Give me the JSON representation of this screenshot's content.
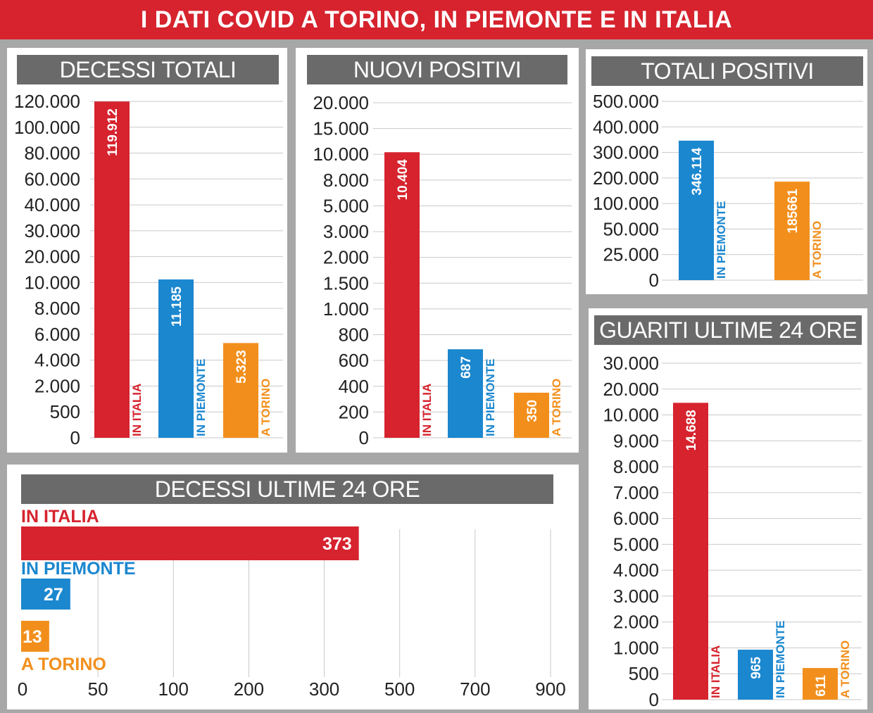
{
  "header": {
    "title": "I DATI COVID A TORINO, IN PIEMONTE E IN ITALIA"
  },
  "colors": {
    "italia": "#d6232e",
    "piemonte": "#1b87cf",
    "torino": "#f28f1c",
    "title_bg": "#6a6a6a",
    "banner": "#d6232e"
  },
  "chart_data": [
    {
      "id": "decessi_totali",
      "type": "bar",
      "title": "DECESSI TOTALI",
      "ticks": [
        "0",
        "500",
        "2.000",
        "4.000",
        "6.000",
        "8.000",
        "10.000",
        "20.000",
        "30.000",
        "40.000",
        "60.000",
        "80.000",
        "100.000",
        "120.000"
      ],
      "categories": [
        "IN ITALIA",
        "IN PIEMONTE",
        "A TORINO"
      ],
      "values": [
        119912,
        11185,
        5323
      ],
      "value_labels": [
        "119.912",
        "11.185",
        "5.323"
      ]
    },
    {
      "id": "nuovi_positivi",
      "type": "bar",
      "title": "NUOVI POSITIVI",
      "ticks": [
        "0",
        "200",
        "400",
        "600",
        "800",
        "1.000",
        "1.500",
        "2.000",
        "3.000",
        "5.000",
        "8.000",
        "10.000",
        "15.000",
        "20.000"
      ],
      "categories": [
        "IN ITALIA",
        "IN PIEMONTE",
        "A TORINO"
      ],
      "values": [
        10404,
        687,
        350
      ],
      "value_labels": [
        "10.404",
        "687",
        "350"
      ]
    },
    {
      "id": "totali_positivi",
      "type": "bar",
      "title": "TOTALI POSITIVI",
      "ticks": [
        "0",
        "25.000",
        "50.000",
        "100.000",
        "200.000",
        "300.000",
        "400.000",
        "500.000"
      ],
      "categories": [
        "IN PIEMONTE",
        "A TORINO"
      ],
      "values": [
        346114,
        185661
      ],
      "value_labels": [
        "346.114",
        "185661"
      ]
    },
    {
      "id": "guariti_24",
      "type": "bar",
      "title": "GUARITI ULTIME 24 ORE",
      "ticks": [
        "0",
        "500",
        "1.000",
        "2.000",
        "3.000",
        "4.000",
        "5.000",
        "6.000",
        "7.000",
        "8.000",
        "9.000",
        "10.000",
        "20.000",
        "30.000"
      ],
      "categories": [
        "IN ITALIA",
        "IN PIEMONTE",
        "A TORINO"
      ],
      "values": [
        14688,
        965,
        611
      ],
      "value_labels": [
        "14.688",
        "965",
        "611"
      ]
    },
    {
      "id": "decessi_24",
      "type": "bar",
      "orientation": "horizontal",
      "title": "DECESSI ULTIME 24 ORE",
      "ticks": [
        "0",
        "50",
        "100",
        "200",
        "300",
        "500",
        "700",
        "900"
      ],
      "categories": [
        "IN ITALIA",
        "IN PIEMONTE",
        "A TORINO"
      ],
      "values": [
        373,
        27,
        13
      ],
      "value_labels": [
        "373",
        "27",
        "13"
      ]
    }
  ]
}
